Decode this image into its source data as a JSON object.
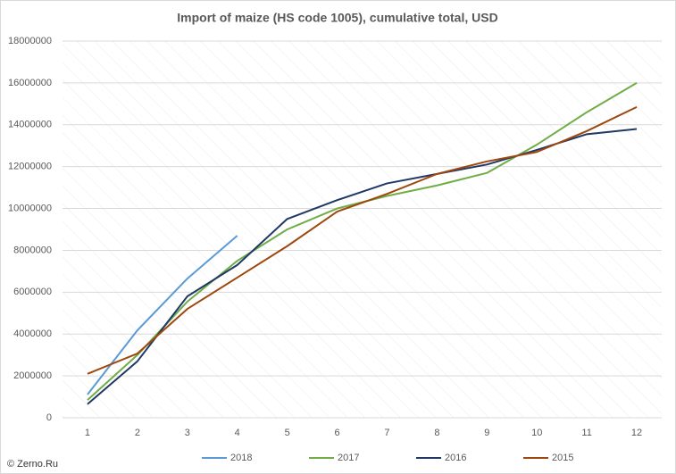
{
  "chart_data": {
    "type": "line",
    "title": "Import of maize (HS code 1005), cumulative total, USD",
    "categories": [
      "1",
      "2",
      "3",
      "4",
      "5",
      "6",
      "7",
      "8",
      "9",
      "10",
      "11",
      "12"
    ],
    "series": [
      {
        "name": "2018",
        "color": "#5b9bd5",
        "values": [
          1110000,
          4180000,
          6650000,
          8700000,
          null,
          null,
          null,
          null,
          null,
          null,
          null,
          null
        ]
      },
      {
        "name": "2017",
        "color": "#70ad47",
        "values": [
          850000,
          3000000,
          5550000,
          7500000,
          9000000,
          10000000,
          10600000,
          11100000,
          11700000,
          13050000,
          14600000,
          16000000
        ]
      },
      {
        "name": "2016",
        "color": "#203864",
        "values": [
          650000,
          2700000,
          5800000,
          7300000,
          9500000,
          10400000,
          11200000,
          11650000,
          12100000,
          12800000,
          13550000,
          13800000
        ]
      },
      {
        "name": "2015",
        "color": "#9e480e",
        "values": [
          2100000,
          3070000,
          5200000,
          6700000,
          8200000,
          9850000,
          10700000,
          11650000,
          12250000,
          12700000,
          13700000,
          14850000
        ]
      }
    ],
    "ylim": [
      0,
      18000000
    ],
    "yticks": [
      0,
      2000000,
      4000000,
      6000000,
      8000000,
      10000000,
      12000000,
      14000000,
      16000000,
      18000000
    ],
    "grid": true,
    "legend": "bottom",
    "source": "© Zerno.Ru"
  }
}
